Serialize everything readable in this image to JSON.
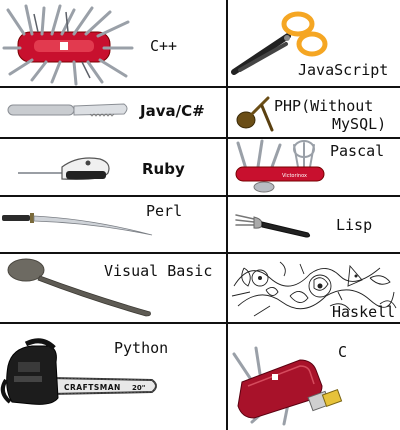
{
  "rows": [
    {
      "left": {
        "label": "C++",
        "icon": "swiss-army-knife-giant-icon"
      },
      "right": {
        "label": "JavaScript",
        "icon": "scissors-icon"
      }
    },
    {
      "left": {
        "label": "Java/C#",
        "icon": "butter-knife-icon"
      },
      "right": {
        "label_line1": "PHP(Without",
        "label_line2": "MySQL)",
        "icon": "spoon-fork-icon"
      }
    },
    {
      "left": {
        "label": "Ruby",
        "icon": "electric-knife-icon"
      },
      "right": {
        "label": "Pascal",
        "icon": "multitool-spork-icon"
      }
    },
    {
      "left": {
        "label": "Perl",
        "icon": "katana-icon"
      },
      "right": {
        "label": "Lisp",
        "icon": "fork-icon"
      }
    },
    {
      "left": {
        "label": "Visual Basic",
        "icon": "spoon-icon"
      },
      "right": {
        "label": "Haskell",
        "icon": "abstract-sketch-icon"
      }
    },
    {
      "left": {
        "label": "Python",
        "icon": "chainsaw-icon",
        "brand": "CRAFTSMAN",
        "size": "20\""
      },
      "right": {
        "label": "C",
        "icon": "pocket-knife-usb-icon"
      }
    }
  ],
  "colors": {
    "line": "#111111",
    "swiss_red": "#c8102e",
    "scissors_orange": "#f5a623",
    "steel": "#b8bcc2"
  }
}
